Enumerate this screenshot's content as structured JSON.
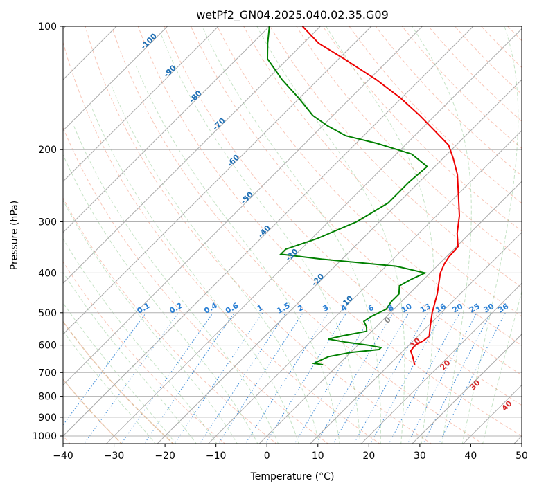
{
  "chart_data": {
    "type": "line",
    "subtype": "skew-t log-p",
    "title": "wetPf2_GN04.2025.040.02.35.G09",
    "xlabel": "Temperature (°C)",
    "ylabel": "Pressure (hPa)",
    "xlim": [
      -40,
      50
    ],
    "ylim_pressure": [
      1050,
      100
    ],
    "y_scale": "log",
    "x_ticks": [
      -40,
      -30,
      -20,
      -10,
      0,
      10,
      20,
      30,
      40,
      50
    ],
    "x_tick_labels": [
      "−40",
      "−30",
      "−20",
      "−10",
      "0",
      "10",
      "20",
      "30",
      "40",
      "50"
    ],
    "y_ticks": [
      1000,
      900,
      800,
      700,
      600,
      500,
      400,
      300,
      200,
      100
    ],
    "y_tick_labels": [
      "1000",
      "900",
      "800",
      "700",
      "600",
      "500",
      "400",
      "300",
      "200",
      "100"
    ],
    "grid": true,
    "colors": {
      "temperature": "#ee0000",
      "dewpoint": "#008000",
      "isotherm": "#aaaaaa",
      "isotherm_label": "#1f6fb4",
      "dry_adiabat": "#f08060",
      "moist_adiabat": "#70b870",
      "mixing_ratio": "#2a7fd4",
      "special_adiabat": "#d8b890",
      "adiabat_label": "#d62728"
    },
    "series": [
      {
        "role": "temperature",
        "points": [
          {
            "p": 670,
            "t": 15.0
          },
          {
            "p": 640,
            "t": 13.0
          },
          {
            "p": 620,
            "t": 11.5
          },
          {
            "p": 600,
            "t": 11.2
          },
          {
            "p": 585,
            "t": 12.0
          },
          {
            "p": 570,
            "t": 12.2
          },
          {
            "p": 540,
            "t": 10.5
          },
          {
            "p": 500,
            "t": 8.2
          },
          {
            "p": 450,
            "t": 5.5
          },
          {
            "p": 400,
            "t": 2.0
          },
          {
            "p": 380,
            "t": 1.0
          },
          {
            "p": 365,
            "t": 0.5
          },
          {
            "p": 345,
            "t": 0.3
          },
          {
            "p": 320,
            "t": -2.5
          },
          {
            "p": 290,
            "t": -5.5
          },
          {
            "p": 260,
            "t": -9.5
          },
          {
            "p": 230,
            "t": -14.0
          },
          {
            "p": 210,
            "t": -18.0
          },
          {
            "p": 195,
            "t": -21.5
          },
          {
            "p": 180,
            "t": -27.0
          },
          {
            "p": 165,
            "t": -33.0
          },
          {
            "p": 150,
            "t": -40.0
          },
          {
            "p": 135,
            "t": -48.5
          },
          {
            "p": 120,
            "t": -59.0
          },
          {
            "p": 110,
            "t": -67.0
          },
          {
            "p": 100,
            "t": -73.5
          }
        ]
      },
      {
        "role": "dewpoint",
        "points": [
          {
            "p": 670,
            "t": -3.0
          },
          {
            "p": 665,
            "t": -5.0
          },
          {
            "p": 655,
            "t": -4.5
          },
          {
            "p": 640,
            "t": -3.5
          },
          {
            "p": 625,
            "t": 0.0
          },
          {
            "p": 615,
            "t": 5.0
          },
          {
            "p": 608,
            "t": 5.0
          },
          {
            "p": 600,
            "t": 2.0
          },
          {
            "p": 590,
            "t": -3.0
          },
          {
            "p": 580,
            "t": -7.0
          },
          {
            "p": 570,
            "t": -5.0
          },
          {
            "p": 555,
            "t": -1.0
          },
          {
            "p": 540,
            "t": -2.0
          },
          {
            "p": 525,
            "t": -3.5
          },
          {
            "p": 510,
            "t": -3.0
          },
          {
            "p": 490,
            "t": -1.5
          },
          {
            "p": 470,
            "t": -2.0
          },
          {
            "p": 450,
            "t": -2.0
          },
          {
            "p": 430,
            "t": -3.5
          },
          {
            "p": 415,
            "t": -2.5
          },
          {
            "p": 400,
            "t": -1.0
          },
          {
            "p": 385,
            "t": -8.0
          },
          {
            "p": 370,
            "t": -24.0
          },
          {
            "p": 360,
            "t": -33.0
          },
          {
            "p": 350,
            "t": -33.0
          },
          {
            "p": 330,
            "t": -29.0
          },
          {
            "p": 300,
            "t": -24.5
          },
          {
            "p": 270,
            "t": -22.0
          },
          {
            "p": 240,
            "t": -22.0
          },
          {
            "p": 220,
            "t": -21.5
          },
          {
            "p": 205,
            "t": -27.0
          },
          {
            "p": 193,
            "t": -36.0
          },
          {
            "p": 185,
            "t": -43.5
          },
          {
            "p": 175,
            "t": -49.0
          },
          {
            "p": 165,
            "t": -54.0
          },
          {
            "p": 150,
            "t": -60.0
          },
          {
            "p": 135,
            "t": -67.0
          },
          {
            "p": 120,
            "t": -74.0
          },
          {
            "p": 110,
            "t": -77.0
          },
          {
            "p": 100,
            "t": -80.0
          }
        ]
      }
    ],
    "isotherm_labels": [
      {
        "t": -100,
        "label": "-100"
      },
      {
        "t": -90,
        "label": "-90"
      },
      {
        "t": -80,
        "label": "-80"
      },
      {
        "t": -70,
        "label": "-70"
      },
      {
        "t": -60,
        "label": "-60"
      },
      {
        "t": -50,
        "label": "-50"
      },
      {
        "t": -40,
        "label": "-40"
      },
      {
        "t": -30,
        "label": "-30"
      },
      {
        "t": -20,
        "label": "-20"
      },
      {
        "t": -10,
        "label": "-10"
      }
    ],
    "mixing_ratio_labels": [
      "0.1",
      "0.2",
      "0.4",
      "0.6",
      "1",
      "1.5",
      "2",
      "3",
      "4",
      "6",
      "8",
      "10",
      "13",
      "16",
      "20",
      "25",
      "30",
      "36"
    ],
    "adiabat_labels": [
      {
        "label": "0",
        "color": "#888888"
      },
      {
        "label": "10",
        "color": "#d62728"
      },
      {
        "label": "20",
        "color": "#d62728"
      },
      {
        "label": "30",
        "color": "#d62728"
      },
      {
        "label": "40",
        "color": "#d62728"
      }
    ]
  }
}
